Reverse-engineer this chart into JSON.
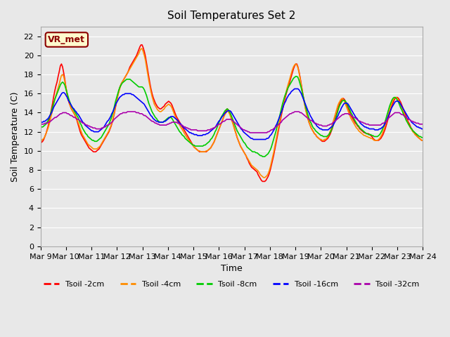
{
  "title": "Soil Temperatures Set 2",
  "xlabel": "Time",
  "ylabel": "Soil Temperature (C)",
  "annotation": "VR_met",
  "ylim": [
    0,
    23
  ],
  "yticks": [
    0,
    2,
    4,
    6,
    8,
    10,
    12,
    14,
    16,
    18,
    20,
    22
  ],
  "series_colors": {
    "Tsoil -2cm": "#FF0000",
    "Tsoil -4cm": "#FF8C00",
    "Tsoil -8cm": "#00CC00",
    "Tsoil -16cm": "#0000FF",
    "Tsoil -32cm": "#AA00AA"
  },
  "xtick_labels": [
    "Mar 9",
    "Mar 10",
    "Mar 11",
    "Mar 12",
    "Mar 13",
    "Mar 14",
    "Mar 15",
    "Mar 16",
    "Mar 17",
    "Mar 18",
    "Mar 19",
    "Mar 20",
    "Mar 21",
    "Mar 22",
    "Mar 23",
    "Mar 24"
  ],
  "background_color": "#E8E8E8",
  "plot_bg_color": "#E8E8E8",
  "grid_color": "#FFFFFF",
  "tsoil_2cm": [
    10.8,
    10.9,
    11.0,
    11.2,
    11.5,
    11.8,
    12.2,
    12.6,
    13.2,
    13.8,
    14.4,
    15.0,
    15.7,
    16.3,
    16.8,
    17.2,
    17.8,
    18.3,
    18.9,
    19.1,
    18.8,
    18.2,
    17.5,
    16.7,
    16.0,
    15.4,
    15.0,
    14.7,
    14.4,
    14.2,
    14.0,
    13.8,
    13.5,
    13.2,
    12.8,
    12.4,
    12.0,
    11.7,
    11.5,
    11.3,
    11.1,
    10.9,
    10.7,
    10.5,
    10.3,
    10.2,
    10.1,
    10.0,
    9.9,
    9.9,
    9.9,
    10.0,
    10.1,
    10.2,
    10.4,
    10.6,
    10.8,
    11.0,
    11.2,
    11.4,
    11.6,
    11.8,
    12.0,
    12.3,
    12.6,
    13.0,
    13.5,
    14.0,
    14.6,
    15.2,
    15.8,
    16.3,
    16.7,
    17.0,
    17.2,
    17.4,
    17.6,
    17.8,
    18.0,
    18.2,
    18.5,
    18.8,
    19.0,
    19.2,
    19.4,
    19.6,
    19.8,
    20.0,
    20.3,
    20.6,
    20.9,
    21.1,
    21.1,
    20.8,
    20.4,
    19.9,
    19.2,
    18.5,
    17.8,
    17.1,
    16.5,
    16.0,
    15.6,
    15.3,
    15.0,
    14.8,
    14.6,
    14.5,
    14.4,
    14.4,
    14.5,
    14.6,
    14.7,
    14.9,
    15.0,
    15.1,
    15.2,
    15.1,
    15.0,
    14.8,
    14.5,
    14.2,
    13.9,
    13.6,
    13.4,
    13.2,
    13.0,
    12.8,
    12.6,
    12.4,
    12.2,
    12.0,
    11.8,
    11.6,
    11.4,
    11.2,
    11.0,
    10.8,
    10.6,
    10.4,
    10.3,
    10.2,
    10.1,
    10.0,
    9.9,
    9.9,
    9.9,
    9.9,
    9.9,
    9.9,
    9.9,
    10.0,
    10.1,
    10.2,
    10.3,
    10.5,
    10.7,
    10.9,
    11.2,
    11.5,
    11.8,
    12.1,
    12.4,
    12.7,
    13.0,
    13.3,
    13.6,
    13.9,
    14.2,
    14.4,
    14.3,
    14.1,
    13.8,
    13.4,
    13.0,
    12.6,
    12.2,
    11.8,
    11.4,
    11.1,
    10.8,
    10.5,
    10.3,
    10.1,
    9.9,
    9.7,
    9.5,
    9.2,
    9.0,
    8.7,
    8.5,
    8.3,
    8.2,
    8.1,
    8.0,
    7.9,
    7.8,
    7.5,
    7.3,
    7.1,
    6.9,
    6.8,
    6.8,
    6.8,
    6.9,
    7.1,
    7.3,
    7.6,
    8.0,
    8.5,
    9.0,
    9.5,
    10.1,
    10.7,
    11.3,
    11.9,
    12.5,
    13.1,
    13.7,
    14.3,
    14.8,
    15.3,
    15.8,
    16.2,
    16.6,
    17.0,
    17.4,
    17.8,
    18.2,
    18.6,
    18.9,
    19.1,
    19.1,
    18.8,
    18.3,
    17.7,
    17.0,
    16.3,
    15.6,
    15.0,
    14.4,
    13.9,
    13.4,
    13.0,
    12.7,
    12.4,
    12.2,
    12.0,
    11.8,
    11.7,
    11.5,
    11.4,
    11.3,
    11.2,
    11.1,
    11.0,
    11.0,
    11.0,
    11.1,
    11.2,
    11.3,
    11.5,
    11.7,
    12.0,
    12.3,
    12.7,
    13.1,
    13.5,
    13.9,
    14.3,
    14.7,
    15.0,
    15.2,
    15.4,
    15.5,
    15.4,
    15.2,
    14.9,
    14.6,
    14.3,
    14.0,
    13.7,
    13.5,
    13.3,
    13.1,
    12.9,
    12.8,
    12.6,
    12.5,
    12.3,
    12.2,
    12.1,
    12.0,
    11.9,
    11.9,
    11.8,
    11.8,
    11.8,
    11.7,
    11.6,
    11.5,
    11.3,
    11.2,
    11.1,
    11.1,
    11.1,
    11.1,
    11.2,
    11.3,
    11.5,
    11.7,
    12.0,
    12.3,
    12.7,
    13.1,
    13.5,
    13.9,
    14.3,
    14.7,
    15.0,
    15.3,
    15.5,
    15.6,
    15.6,
    15.5,
    15.3,
    15.1,
    14.8,
    14.5,
    14.2,
    13.9,
    13.6,
    13.3,
    13.0,
    12.8,
    12.5,
    12.3,
    12.1,
    12.0,
    11.8,
    11.7,
    11.5,
    11.4,
    11.3,
    11.2,
    11.1,
    11.1
  ],
  "tsoil_4cm": [
    11.0,
    11.1,
    11.2,
    11.3,
    11.5,
    11.8,
    12.1,
    12.4,
    12.8,
    13.3,
    13.8,
    14.3,
    14.9,
    15.4,
    15.8,
    16.2,
    16.6,
    17.0,
    17.5,
    17.9,
    18.0,
    17.8,
    17.3,
    16.7,
    16.1,
    15.5,
    15.1,
    14.7,
    14.4,
    14.2,
    14.0,
    13.8,
    13.6,
    13.3,
    13.0,
    12.7,
    12.3,
    12.0,
    11.7,
    11.5,
    11.3,
    11.1,
    10.9,
    10.7,
    10.6,
    10.5,
    10.4,
    10.3,
    10.2,
    10.2,
    10.2,
    10.2,
    10.3,
    10.4,
    10.5,
    10.7,
    10.9,
    11.1,
    11.3,
    11.5,
    11.7,
    11.9,
    12.1,
    12.4,
    12.7,
    13.1,
    13.6,
    14.1,
    14.7,
    15.2,
    15.8,
    16.2,
    16.6,
    17.0,
    17.2,
    17.4,
    17.6,
    17.8,
    18.0,
    18.2,
    18.4,
    18.6,
    18.8,
    19.0,
    19.2,
    19.4,
    19.6,
    19.8,
    20.0,
    20.2,
    20.5,
    20.7,
    20.7,
    20.4,
    20.0,
    19.5,
    18.8,
    18.1,
    17.4,
    16.8,
    16.2,
    15.7,
    15.3,
    14.9,
    14.7,
    14.5,
    14.3,
    14.2,
    14.1,
    14.1,
    14.2,
    14.3,
    14.4,
    14.6,
    14.7,
    14.8,
    14.9,
    14.8,
    14.7,
    14.5,
    14.2,
    13.9,
    13.6,
    13.3,
    13.1,
    12.9,
    12.7,
    12.5,
    12.3,
    12.1,
    11.9,
    11.7,
    11.5,
    11.3,
    11.2,
    11.0,
    10.9,
    10.7,
    10.6,
    10.4,
    10.3,
    10.2,
    10.1,
    10.0,
    10.0,
    9.9,
    9.9,
    9.9,
    9.9,
    9.9,
    10.0,
    10.0,
    10.1,
    10.2,
    10.3,
    10.5,
    10.7,
    10.9,
    11.2,
    11.5,
    11.8,
    12.1,
    12.4,
    12.7,
    13.0,
    13.3,
    13.6,
    13.8,
    14.0,
    14.2,
    14.1,
    13.9,
    13.6,
    13.2,
    12.9,
    12.5,
    12.1,
    11.8,
    11.4,
    11.1,
    10.8,
    10.5,
    10.3,
    10.1,
    9.9,
    9.7,
    9.5,
    9.3,
    9.1,
    8.9,
    8.7,
    8.5,
    8.4,
    8.3,
    8.2,
    8.1,
    8.0,
    7.9,
    7.7,
    7.5,
    7.4,
    7.3,
    7.2,
    7.2,
    7.3,
    7.4,
    7.6,
    7.9,
    8.3,
    8.8,
    9.3,
    9.8,
    10.4,
    11.0,
    11.6,
    12.2,
    12.8,
    13.4,
    14.0,
    14.6,
    15.1,
    15.6,
    16.0,
    16.5,
    16.9,
    17.3,
    17.7,
    18.1,
    18.5,
    18.8,
    19.0,
    19.1,
    19.0,
    18.7,
    18.2,
    17.6,
    16.9,
    16.2,
    15.5,
    14.9,
    14.3,
    13.8,
    13.4,
    13.0,
    12.7,
    12.4,
    12.2,
    12.0,
    11.8,
    11.7,
    11.5,
    11.4,
    11.3,
    11.2,
    11.2,
    11.1,
    11.1,
    11.2,
    11.2,
    11.3,
    11.5,
    11.7,
    12.0,
    12.3,
    12.7,
    13.1,
    13.5,
    13.9,
    14.3,
    14.7,
    15.0,
    15.2,
    15.4,
    15.5,
    15.4,
    15.2,
    14.9,
    14.6,
    14.3,
    14.0,
    13.7,
    13.4,
    13.2,
    13.0,
    12.8,
    12.6,
    12.4,
    12.3,
    12.1,
    12.0,
    11.9,
    11.8,
    11.7,
    11.6,
    11.6,
    11.5,
    11.5,
    11.4,
    11.4,
    11.3,
    11.3,
    11.2,
    11.1,
    11.1,
    11.1,
    11.1,
    11.2,
    11.3,
    11.5,
    11.7,
    12.0,
    12.3,
    12.7,
    13.1,
    13.5,
    13.9,
    14.3,
    14.7,
    15.0,
    15.3,
    15.5,
    15.6,
    15.6,
    15.5,
    15.3,
    15.1,
    14.8,
    14.5,
    14.2,
    13.9,
    13.6,
    13.3,
    13.1,
    12.8,
    12.6,
    12.4,
    12.2,
    12.0,
    11.9,
    11.7,
    11.6,
    11.5,
    11.4,
    11.3,
    11.2,
    11.1,
    11.1
  ],
  "tsoil_8cm": [
    12.5,
    12.5,
    12.5,
    12.6,
    12.7,
    12.8,
    13.0,
    13.2,
    13.5,
    13.8,
    14.2,
    14.6,
    15.0,
    15.4,
    15.7,
    16.0,
    16.3,
    16.6,
    16.9,
    17.1,
    17.2,
    17.1,
    16.9,
    16.5,
    16.1,
    15.7,
    15.3,
    15.0,
    14.7,
    14.5,
    14.3,
    14.1,
    13.9,
    13.7,
    13.5,
    13.2,
    12.9,
    12.7,
    12.4,
    12.2,
    12.0,
    11.8,
    11.7,
    11.5,
    11.4,
    11.3,
    11.2,
    11.1,
    11.1,
    11.0,
    11.0,
    11.0,
    11.1,
    11.2,
    11.3,
    11.4,
    11.6,
    11.8,
    12.0,
    12.2,
    12.4,
    12.6,
    12.8,
    13.1,
    13.4,
    13.8,
    14.2,
    14.7,
    15.2,
    15.6,
    16.0,
    16.4,
    16.7,
    16.9,
    17.1,
    17.2,
    17.3,
    17.4,
    17.5,
    17.5,
    17.5,
    17.5,
    17.4,
    17.3,
    17.2,
    17.1,
    17.0,
    16.9,
    16.8,
    16.7,
    16.7,
    16.7,
    16.7,
    16.6,
    16.4,
    16.1,
    15.8,
    15.4,
    15.0,
    14.7,
    14.4,
    14.1,
    13.9,
    13.7,
    13.5,
    13.4,
    13.2,
    13.1,
    13.0,
    13.0,
    13.0,
    13.0,
    13.1,
    13.2,
    13.3,
    13.4,
    13.5,
    13.5,
    13.5,
    13.4,
    13.2,
    13.0,
    12.8,
    12.6,
    12.4,
    12.2,
    12.0,
    11.9,
    11.7,
    11.6,
    11.5,
    11.3,
    11.2,
    11.1,
    11.0,
    10.9,
    10.8,
    10.7,
    10.6,
    10.6,
    10.5,
    10.5,
    10.5,
    10.5,
    10.5,
    10.5,
    10.5,
    10.5,
    10.6,
    10.6,
    10.7,
    10.8,
    10.9,
    11.0,
    11.2,
    11.3,
    11.5,
    11.7,
    12.0,
    12.2,
    12.5,
    12.8,
    13.1,
    13.4,
    13.6,
    13.8,
    14.0,
    14.2,
    14.3,
    14.4,
    14.3,
    14.1,
    13.9,
    13.6,
    13.3,
    13.0,
    12.7,
    12.4,
    12.1,
    11.9,
    11.7,
    11.5,
    11.3,
    11.1,
    10.9,
    10.8,
    10.6,
    10.4,
    10.3,
    10.2,
    10.1,
    10.0,
    9.9,
    9.9,
    9.9,
    9.8,
    9.8,
    9.7,
    9.6,
    9.5,
    9.5,
    9.4,
    9.4,
    9.4,
    9.5,
    9.6,
    9.7,
    9.9,
    10.1,
    10.4,
    10.8,
    11.2,
    11.6,
    12.0,
    12.5,
    13.0,
    13.4,
    13.9,
    14.4,
    14.9,
    15.3,
    15.7,
    16.0,
    16.3,
    16.6,
    16.8,
    17.0,
    17.2,
    17.4,
    17.6,
    17.7,
    17.8,
    17.8,
    17.7,
    17.4,
    17.0,
    16.6,
    16.1,
    15.6,
    15.1,
    14.6,
    14.2,
    13.8,
    13.4,
    13.1,
    12.9,
    12.6,
    12.4,
    12.3,
    12.1,
    12.0,
    11.9,
    11.8,
    11.7,
    11.6,
    11.6,
    11.5,
    11.5,
    11.5,
    11.5,
    11.6,
    11.7,
    11.9,
    12.1,
    12.4,
    12.7,
    13.0,
    13.3,
    13.7,
    14.1,
    14.5,
    14.8,
    15.0,
    15.2,
    15.3,
    15.3,
    15.2,
    15.0,
    14.8,
    14.5,
    14.3,
    14.0,
    13.8,
    13.5,
    13.3,
    13.1,
    12.9,
    12.7,
    12.6,
    12.4,
    12.3,
    12.2,
    12.1,
    12.0,
    11.9,
    11.8,
    11.8,
    11.7,
    11.7,
    11.7,
    11.6,
    11.6,
    11.5,
    11.5,
    11.5,
    11.5,
    11.6,
    11.7,
    11.9,
    12.1,
    12.4,
    12.7,
    13.1,
    13.5,
    13.9,
    14.3,
    14.7,
    15.0,
    15.3,
    15.5,
    15.6,
    15.6,
    15.5,
    15.3,
    15.1,
    14.8,
    14.5,
    14.3,
    14.0,
    13.7,
    13.5,
    13.2,
    13.0,
    12.8,
    12.6,
    12.4,
    12.3,
    12.1,
    12.0,
    11.9,
    11.8,
    11.7,
    11.6,
    11.5,
    11.5,
    11.4,
    11.4
  ],
  "tsoil_16cm": [
    13.0,
    13.0,
    13.0,
    13.1,
    13.1,
    13.2,
    13.3,
    13.4,
    13.6,
    13.8,
    14.0,
    14.3,
    14.6,
    14.8,
    15.0,
    15.2,
    15.4,
    15.6,
    15.8,
    16.0,
    16.1,
    16.1,
    16.0,
    15.8,
    15.6,
    15.3,
    15.1,
    14.9,
    14.7,
    14.5,
    14.4,
    14.2,
    14.1,
    13.9,
    13.8,
    13.6,
    13.4,
    13.2,
    13.0,
    12.9,
    12.7,
    12.6,
    12.5,
    12.4,
    12.3,
    12.2,
    12.1,
    12.1,
    12.0,
    12.0,
    12.0,
    12.0,
    12.0,
    12.1,
    12.2,
    12.3,
    12.4,
    12.5,
    12.7,
    12.9,
    13.1,
    13.2,
    13.4,
    13.6,
    13.9,
    14.1,
    14.4,
    14.7,
    15.0,
    15.2,
    15.4,
    15.6,
    15.7,
    15.8,
    15.9,
    15.9,
    16.0,
    16.0,
    16.0,
    16.0,
    16.0,
    16.0,
    15.9,
    15.9,
    15.8,
    15.7,
    15.6,
    15.5,
    15.4,
    15.3,
    15.2,
    15.1,
    15.0,
    14.9,
    14.7,
    14.5,
    14.3,
    14.1,
    13.9,
    13.7,
    13.6,
    13.4,
    13.3,
    13.2,
    13.1,
    13.1,
    13.0,
    13.0,
    13.0,
    13.0,
    13.0,
    13.1,
    13.1,
    13.2,
    13.3,
    13.4,
    13.5,
    13.6,
    13.6,
    13.6,
    13.5,
    13.4,
    13.3,
    13.2,
    13.0,
    12.9,
    12.8,
    12.6,
    12.5,
    12.4,
    12.3,
    12.2,
    12.1,
    12.0,
    11.9,
    11.9,
    11.8,
    11.8,
    11.7,
    11.7,
    11.7,
    11.6,
    11.6,
    11.6,
    11.6,
    11.6,
    11.7,
    11.7,
    11.7,
    11.8,
    11.8,
    11.9,
    12.0,
    12.1,
    12.2,
    12.3,
    12.4,
    12.5,
    12.7,
    12.9,
    13.1,
    13.2,
    13.4,
    13.6,
    13.7,
    13.9,
    14.0,
    14.1,
    14.2,
    14.2,
    14.2,
    14.1,
    13.9,
    13.7,
    13.5,
    13.3,
    13.1,
    12.9,
    12.7,
    12.5,
    12.3,
    12.2,
    12.0,
    11.9,
    11.8,
    11.7,
    11.6,
    11.5,
    11.4,
    11.3,
    11.3,
    11.2,
    11.2,
    11.2,
    11.2,
    11.2,
    11.2,
    11.2,
    11.2,
    11.2,
    11.2,
    11.2,
    11.2,
    11.3,
    11.3,
    11.4,
    11.6,
    11.7,
    11.9,
    12.1,
    12.3,
    12.6,
    12.8,
    13.1,
    13.4,
    13.7,
    14.0,
    14.3,
    14.7,
    15.0,
    15.2,
    15.5,
    15.7,
    15.9,
    16.0,
    16.2,
    16.3,
    16.4,
    16.5,
    16.5,
    16.5,
    16.5,
    16.4,
    16.2,
    16.0,
    15.7,
    15.4,
    15.1,
    14.8,
    14.5,
    14.2,
    14.0,
    13.7,
    13.5,
    13.3,
    13.1,
    12.9,
    12.8,
    12.6,
    12.5,
    12.4,
    12.3,
    12.3,
    12.2,
    12.2,
    12.2,
    12.2,
    12.2,
    12.2,
    12.3,
    12.4,
    12.5,
    12.6,
    12.8,
    13.0,
    13.2,
    13.5,
    13.7,
    14.0,
    14.2,
    14.5,
    14.7,
    14.9,
    15.0,
    15.0,
    15.0,
    14.9,
    14.7,
    14.5,
    14.3,
    14.1,
    13.9,
    13.7,
    13.5,
    13.4,
    13.2,
    13.1,
    12.9,
    12.8,
    12.7,
    12.6,
    12.5,
    12.5,
    12.4,
    12.4,
    12.3,
    12.3,
    12.3,
    12.3,
    12.3,
    12.2,
    12.2,
    12.2,
    12.2,
    12.3,
    12.3,
    12.4,
    12.5,
    12.6,
    12.8,
    13.1,
    13.3,
    13.6,
    13.9,
    14.2,
    14.5,
    14.7,
    14.9,
    15.1,
    15.2,
    15.2,
    15.2,
    15.1,
    14.9,
    14.7,
    14.5,
    14.3,
    14.1,
    13.9,
    13.7,
    13.5,
    13.3,
    13.2,
    13.0,
    12.9,
    12.8,
    12.7,
    12.6,
    12.5,
    12.5,
    12.4,
    12.4,
    12.3,
    12.3
  ],
  "tsoil_32cm": [
    12.8,
    12.8,
    12.8,
    12.8,
    12.9,
    12.9,
    12.9,
    13.0,
    13.0,
    13.1,
    13.2,
    13.3,
    13.4,
    13.5,
    13.5,
    13.6,
    13.7,
    13.8,
    13.9,
    13.9,
    14.0,
    14.0,
    14.0,
    14.0,
    13.9,
    13.9,
    13.8,
    13.7,
    13.7,
    13.6,
    13.5,
    13.5,
    13.4,
    13.3,
    13.3,
    13.2,
    13.1,
    13.0,
    12.9,
    12.9,
    12.8,
    12.7,
    12.7,
    12.6,
    12.6,
    12.5,
    12.5,
    12.4,
    12.4,
    12.4,
    12.3,
    12.3,
    12.3,
    12.3,
    12.3,
    12.4,
    12.4,
    12.5,
    12.5,
    12.6,
    12.7,
    12.7,
    12.8,
    12.9,
    13.0,
    13.1,
    13.3,
    13.4,
    13.5,
    13.6,
    13.7,
    13.8,
    13.9,
    13.9,
    14.0,
    14.0,
    14.0,
    14.0,
    14.1,
    14.1,
    14.1,
    14.1,
    14.1,
    14.1,
    14.1,
    14.1,
    14.0,
    14.0,
    14.0,
    13.9,
    13.9,
    13.9,
    13.8,
    13.7,
    13.7,
    13.6,
    13.5,
    13.4,
    13.3,
    13.2,
    13.1,
    13.1,
    13.0,
    12.9,
    12.9,
    12.8,
    12.8,
    12.7,
    12.7,
    12.7,
    12.7,
    12.7,
    12.7,
    12.7,
    12.8,
    12.8,
    12.9,
    12.9,
    13.0,
    13.0,
    13.0,
    13.0,
    13.0,
    12.9,
    12.9,
    12.8,
    12.7,
    12.7,
    12.6,
    12.5,
    12.5,
    12.4,
    12.4,
    12.3,
    12.3,
    12.2,
    12.2,
    12.2,
    12.2,
    12.2,
    12.2,
    12.1,
    12.1,
    12.1,
    12.1,
    12.1,
    12.1,
    12.1,
    12.1,
    12.1,
    12.2,
    12.2,
    12.2,
    12.3,
    12.3,
    12.4,
    12.4,
    12.5,
    12.6,
    12.7,
    12.8,
    12.8,
    12.9,
    13.0,
    13.1,
    13.1,
    13.2,
    13.3,
    13.3,
    13.3,
    13.3,
    13.3,
    13.2,
    13.1,
    13.0,
    12.9,
    12.8,
    12.7,
    12.6,
    12.5,
    12.4,
    12.3,
    12.2,
    12.2,
    12.1,
    12.1,
    12.0,
    12.0,
    11.9,
    11.9,
    11.9,
    11.9,
    11.9,
    11.9,
    11.9,
    11.9,
    11.9,
    11.9,
    11.9,
    11.9,
    11.9,
    11.9,
    11.9,
    11.9,
    12.0,
    12.0,
    12.1,
    12.2,
    12.2,
    12.3,
    12.4,
    12.5,
    12.6,
    12.7,
    12.8,
    12.9,
    13.0,
    13.2,
    13.3,
    13.4,
    13.5,
    13.6,
    13.7,
    13.8,
    13.9,
    13.9,
    14.0,
    14.0,
    14.1,
    14.1,
    14.1,
    14.1,
    14.1,
    14.0,
    14.0,
    13.9,
    13.8,
    13.7,
    13.6,
    13.5,
    13.4,
    13.3,
    13.2,
    13.2,
    13.1,
    13.0,
    12.9,
    12.9,
    12.8,
    12.8,
    12.7,
    12.7,
    12.7,
    12.6,
    12.6,
    12.6,
    12.6,
    12.6,
    12.7,
    12.7,
    12.8,
    12.8,
    12.9,
    13.0,
    13.1,
    13.2,
    13.3,
    13.4,
    13.5,
    13.6,
    13.7,
    13.8,
    13.8,
    13.9,
    13.9,
    13.9,
    13.9,
    13.8,
    13.8,
    13.7,
    13.6,
    13.5,
    13.5,
    13.4,
    13.3,
    13.2,
    13.1,
    13.1,
    13.0,
    13.0,
    12.9,
    12.9,
    12.8,
    12.8,
    12.8,
    12.7,
    12.7,
    12.7,
    12.7,
    12.7,
    12.7,
    12.7,
    12.7,
    12.7,
    12.7,
    12.7,
    12.8,
    12.9,
    12.9,
    13.0,
    13.1,
    13.2,
    13.4,
    13.5,
    13.6,
    13.7,
    13.8,
    13.9,
    14.0,
    14.0,
    14.0,
    14.0,
    14.0,
    13.9,
    13.8,
    13.8,
    13.7,
    13.6,
    13.5,
    13.4,
    13.3,
    13.3,
    13.2,
    13.1,
    13.1,
    13.0,
    13.0,
    12.9,
    12.9,
    12.9,
    12.8,
    12.8,
    12.8,
    12.8
  ]
}
